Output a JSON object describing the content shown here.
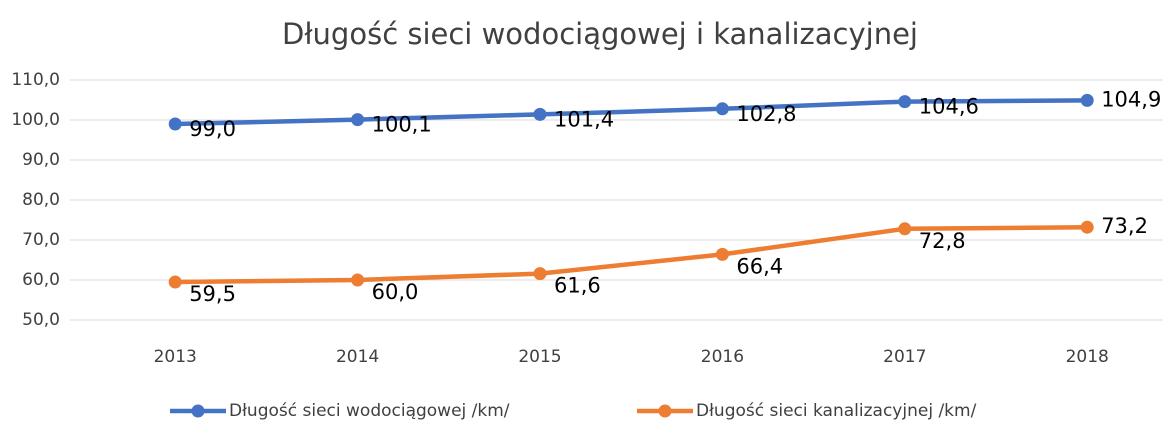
{
  "chart_data": {
    "type": "line",
    "title": "Długość sieci wodociągowej i kanalizacyjnej",
    "categories": [
      "2013",
      "2014",
      "2015",
      "2016",
      "2017",
      "2018"
    ],
    "series": [
      {
        "name": "Długość sieci wodociągowej /km/",
        "color": "#4472c4",
        "values": [
          99.0,
          100.1,
          101.4,
          102.8,
          104.6,
          104.9
        ],
        "value_labels": [
          "99,0",
          "100,1",
          "101,4",
          "102,8",
          "104,6",
          "104,9"
        ]
      },
      {
        "name": "Długość sieci kanalizacyjnej /km/",
        "color": "#ed7d31",
        "values": [
          59.5,
          60.0,
          61.6,
          66.4,
          72.8,
          73.2
        ],
        "value_labels": [
          "59,5",
          "60,0",
          "61,6",
          "66,4",
          "72,8",
          "73,2"
        ]
      }
    ],
    "ylim": [
      50,
      110
    ],
    "yticks": [
      {
        "value": 50,
        "label": "50,0"
      },
      {
        "value": 60,
        "label": "60,0"
      },
      {
        "value": 70,
        "label": "70,0"
      },
      {
        "value": 80,
        "label": "80,0"
      },
      {
        "value": 90,
        "label": "90,0"
      },
      {
        "value": 100,
        "label": "100,0"
      },
      {
        "value": 110,
        "label": "110,0"
      }
    ],
    "grid": true,
    "legend": "bottom"
  }
}
